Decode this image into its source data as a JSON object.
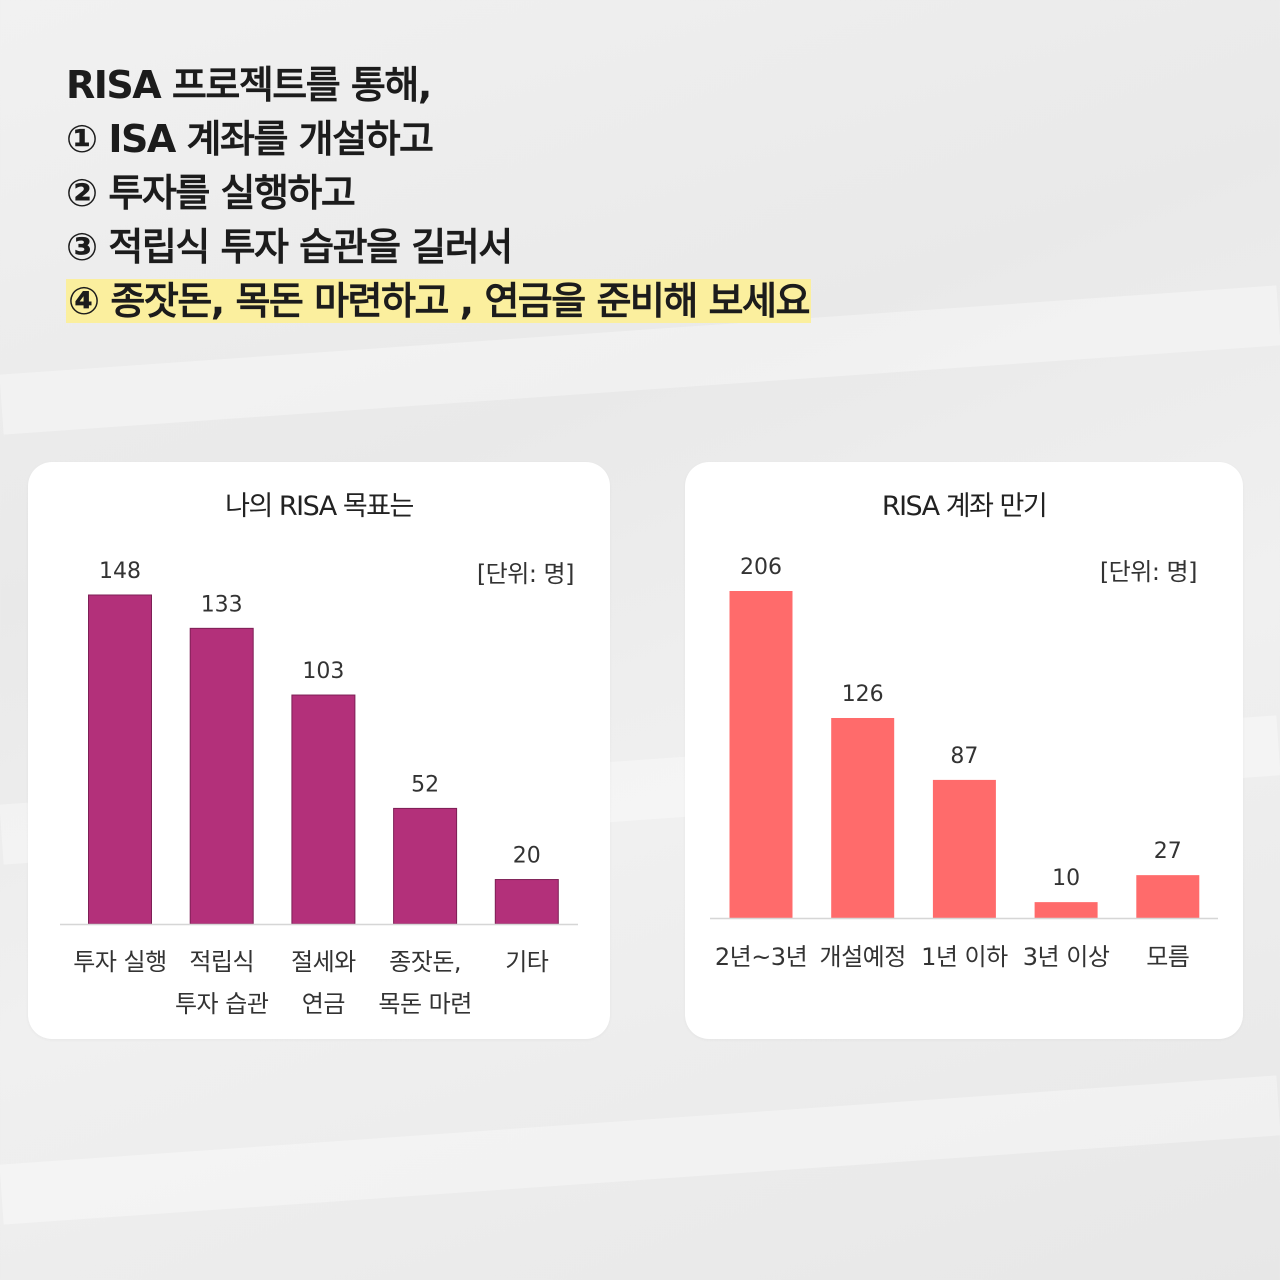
{
  "headline": [
    "RISA 프로젝트를 통해,",
    "① ISA 계좌를 개설하고",
    "② 투자를  실행하고",
    "③ 적립식 투자 습관을 길러서",
    "④ 종잣돈, 목돈 마련하고 , 연금을 준비해 보세요"
  ],
  "colors": {
    "highlight": "#fbef9e",
    "goal_bar": "#b3307a",
    "maturity_bar": "#ff6b6b"
  },
  "chart_data": [
    {
      "type": "bar",
      "title": "나의 RISA 목표는",
      "unit": "[단위: 명]",
      "categories": [
        [
          "투자 실행"
        ],
        [
          "적립식",
          "투자 습관"
        ],
        [
          "절세와",
          "연금"
        ],
        [
          "종잣돈,",
          "목돈 마련"
        ],
        [
          "기타"
        ]
      ],
      "values": [
        148,
        133,
        103,
        52,
        20
      ],
      "ylim": [
        0,
        148
      ],
      "grid": false,
      "color": "#b3307a"
    },
    {
      "type": "bar",
      "title": "RISA 계좌 만기",
      "unit": "[단위: 명]",
      "categories": [
        [
          "2년~3년"
        ],
        [
          "개설예정"
        ],
        [
          "1년 이하"
        ],
        [
          "3년 이상"
        ],
        [
          "모름"
        ]
      ],
      "values": [
        206,
        126,
        87,
        10,
        27
      ],
      "ylim": [
        0,
        206
      ],
      "grid": false,
      "color": "#ff6b6b"
    }
  ]
}
